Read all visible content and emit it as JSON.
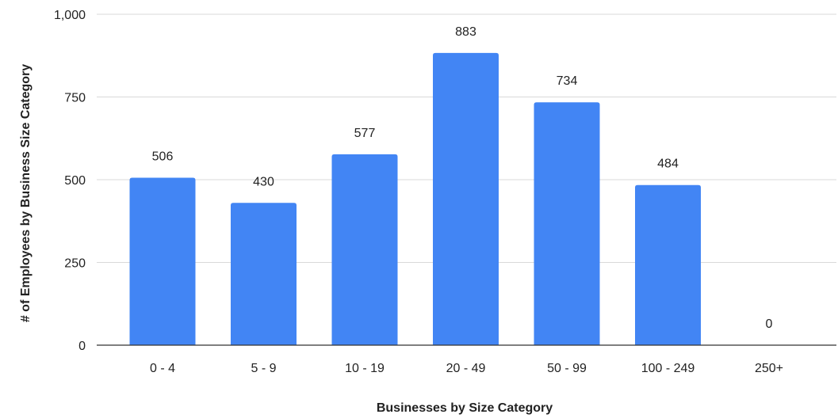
{
  "chart_data": {
    "type": "bar",
    "title": "",
    "xlabel": "Businesses by Size Category",
    "ylabel": "# of Employees by Business Size Category",
    "categories": [
      "0 - 4",
      "5 - 9",
      "10 - 19",
      "20 - 49",
      "50 - 99",
      "100 - 249",
      "250+"
    ],
    "values": [
      506,
      430,
      577,
      883,
      734,
      484,
      0
    ],
    "data_labels": [
      "506",
      "430",
      "577",
      "883",
      "734",
      "484",
      "0"
    ],
    "ylim": [
      0,
      1000
    ],
    "yticks": [
      0,
      250,
      500,
      750,
      1000
    ],
    "ytick_labels": [
      "0",
      "250",
      "500",
      "750",
      "1,000"
    ],
    "grid": true,
    "legend": "none",
    "bar_color": "#4285f4"
  }
}
